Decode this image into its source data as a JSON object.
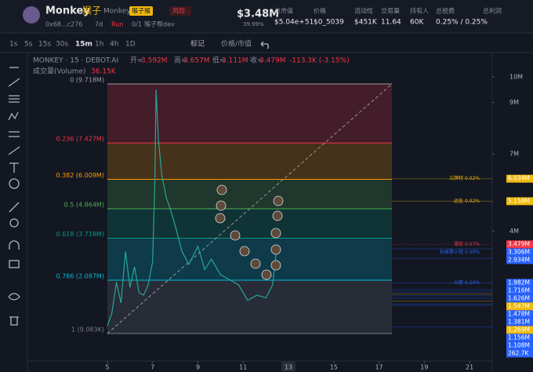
{
  "header": {
    "name": "Monkey",
    "name_cn": "猴子",
    "symbol": "Monkey",
    "tag": "猴子猴",
    "risk": "风险",
    "address": "0x68...c276",
    "age": "7d",
    "run": "Run",
    "dev_count": "0/1",
    "dev": "猴子帮dev",
    "price": "$3.48M",
    "price_sub": "39.99%",
    "stats": [
      {
        "label": "总市值",
        "value": "$5.04e+51"
      },
      {
        "label": "价格",
        "value": "$0_5039"
      },
      {
        "label": "流动性",
        "value": "$451K"
      },
      {
        "label": "交易量",
        "value": "11.64"
      },
      {
        "label": "持有人",
        "value": "60K"
      },
      {
        "label": "总税费",
        "value": "0.25% / 0.25%"
      },
      {
        "label": "总利润"
      }
    ]
  },
  "toolbar": {
    "timeframes": [
      "1s",
      "5s",
      "15s",
      "30s",
      "15m",
      "1h",
      "4h",
      "1D"
    ],
    "active": "15m",
    "marks": "标记",
    "toggle": "价格/市值"
  },
  "legend": {
    "title": "MONKEY · 15 · DEBOT.AI",
    "open_label": "开=",
    "open": "3.592M",
    "high_label": "高=",
    "high": "3.657M",
    "low_label": "低=",
    "low": "3.111M",
    "close_label": "收=",
    "close": "3.479M",
    "change": "-113.3K (-3.15%)",
    "volume_label": "成交量(Volume)",
    "volume": "36.15K"
  },
  "chart_data": {
    "type": "line",
    "x": [
      5.0,
      5.2,
      5.4,
      5.6,
      5.8,
      6.0,
      6.2,
      6.4,
      6.6,
      6.8,
      7.0,
      7.1,
      7.15,
      7.25,
      7.4,
      7.6,
      7.8,
      8.0,
      8.3,
      8.6,
      9.0,
      9.3,
      9.6,
      10.0,
      10.4,
      10.8,
      11.2,
      11.6,
      12.0,
      12.3,
      12.5
    ],
    "series": [
      {
        "name": "MONKEY",
        "color": "#26a69a",
        "values": [
          0.3,
          0.8,
          2.0,
          1.2,
          3.2,
          1.8,
          2.6,
          1.6,
          1.5,
          1.9,
          2.8,
          6.0,
          9.5,
          7.6,
          6.2,
          5.3,
          4.8,
          4.2,
          3.2,
          2.7,
          3.4,
          2.5,
          2.9,
          2.3,
          2.1,
          1.9,
          1.3,
          1.5,
          1.4,
          1.9,
          3.479
        ]
      }
    ],
    "xlim": [
      1.47,
      22
    ],
    "xticks": [
      5,
      7,
      9,
      11,
      13,
      15,
      17,
      19,
      21
    ],
    "ylim": [
      -1.06,
      10.3
    ],
    "yticks": [
      {
        "value": 10,
        "label": "10M"
      },
      {
        "value": 9,
        "label": "9M"
      },
      {
        "value": 7,
        "label": "7M"
      },
      {
        "value": 4,
        "label": "4M"
      }
    ],
    "fib_levels": [
      {
        "label": "0 (9.718M)",
        "value": 9.718,
        "color": "#9e9e9e"
      },
      {
        "label": "0.236 (7.427M)",
        "value": 7.427,
        "color": "#f23645"
      },
      {
        "label": "0.382 (6.009M)",
        "value": 6.009,
        "color": "#ff9800"
      },
      {
        "label": "0.5 (4.864M)",
        "value": 4.864,
        "color": "#4caf50"
      },
      {
        "label": "0.618 (3.718M)",
        "value": 3.718,
        "color": "#089981"
      },
      {
        "label": "0.786 (2.087M)",
        "value": 2.087,
        "color": "#00bcd4"
      },
      {
        "label": "1 (9.083K)",
        "value": 0.009083,
        "color": "#787b86"
      }
    ],
    "price_tags": [
      {
        "label": "6.034M",
        "value": 6.034,
        "color": "#f0b90b",
        "note": "三牌特 0.02%"
      },
      {
        "label": "5.158M",
        "value": 5.158,
        "color": "#f0b90b",
        "note": "运处 0.02%"
      },
      {
        "label": "3.479M",
        "value": 3.479,
        "color": "#f23645",
        "note": "薄荷 0.07%"
      },
      {
        "label": "3.306M",
        "value": 3.306,
        "color": "#2962ff",
        "note": "标骏擎小毯 0.30%"
      },
      {
        "label": "2.934M",
        "value": 2.934,
        "color": "#2962ff"
      },
      {
        "label": "1.982M",
        "value": 1.982,
        "color": "#2962ff",
        "note": "以薪 0.24%"
      },
      {
        "label": "1.716M",
        "value": 1.716,
        "color": "#2962ff"
      },
      {
        "label": "1.626M",
        "value": 1.626,
        "color": "#2962ff"
      },
      {
        "label": "1.547M",
        "value": 1.547,
        "color": "#f0b90b"
      },
      {
        "label": "1.478M",
        "value": 1.478,
        "color": "#2962ff"
      },
      {
        "label": "1.381M",
        "value": 1.381,
        "color": "#2962ff"
      },
      {
        "label": "1.269M",
        "value": 1.269,
        "color": "#f0b90b"
      },
      {
        "label": "1.156M",
        "value": 1.156,
        "color": "#2962ff"
      },
      {
        "label": "1.108M",
        "value": 1.108,
        "color": "#2962ff"
      },
      {
        "label": "262.7K",
        "value": 0.2627,
        "color": "#2962ff"
      }
    ]
  }
}
